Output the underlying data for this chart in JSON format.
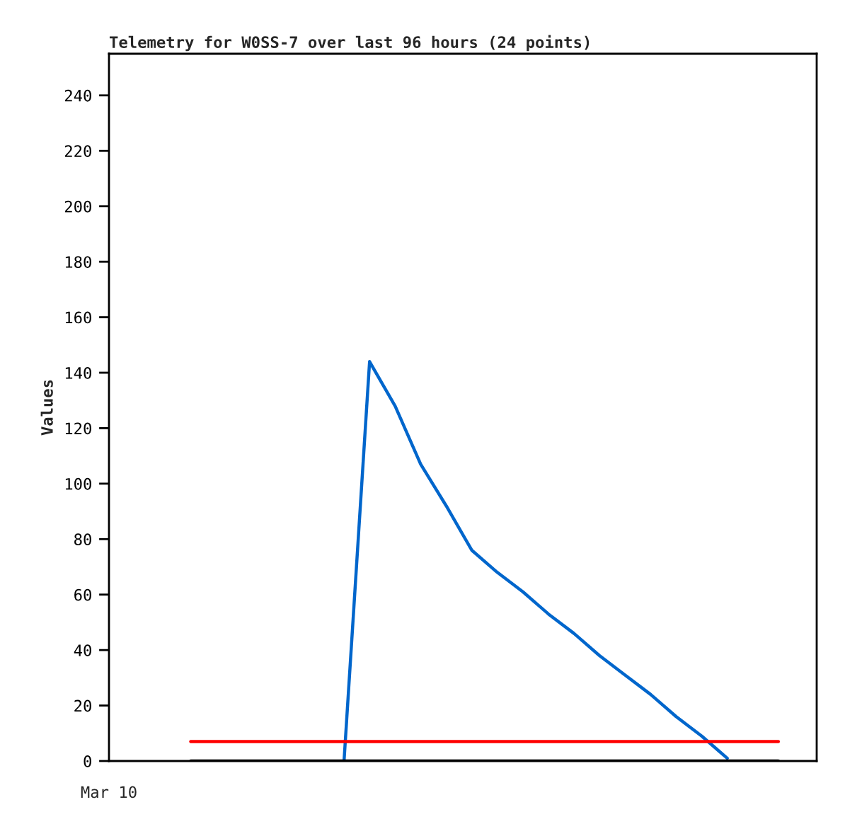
{
  "chart_data": {
    "type": "line",
    "title": "Telemetry for W0SS-7 over last 96 hours (24 points)",
    "ylabel": "Values",
    "annotations": [
      "Mar 10"
    ],
    "categories": [
      null,
      null,
      null,
      null,
      null,
      null,
      null,
      null,
      null,
      null,
      null,
      null,
      null,
      null,
      null,
      null,
      null,
      null,
      null,
      null,
      null,
      null,
      null,
      null
    ],
    "ylim": [
      0,
      255
    ],
    "yticks": [
      0,
      20,
      40,
      60,
      80,
      100,
      120,
      140,
      160,
      180,
      200,
      220,
      240
    ],
    "grid": false,
    "legend": false,
    "marker": "none",
    "line_style": "solid",
    "series": [
      {
        "color": "#0066cc",
        "values": [
          null,
          null,
          null,
          null,
          null,
          null,
          0,
          144,
          128,
          107,
          92,
          76,
          68,
          61,
          53,
          46,
          38,
          31,
          24,
          16,
          9,
          1,
          null,
          null
        ]
      },
      {
        "color": "#ff0000",
        "values": [
          7,
          7,
          7,
          7,
          7,
          7,
          7,
          7,
          7,
          7,
          7,
          7,
          7,
          7,
          7,
          7,
          7,
          7,
          7,
          7,
          7,
          7,
          7,
          7
        ]
      },
      {
        "color": "#000000",
        "values": [
          0,
          0,
          0,
          0,
          0,
          0,
          0,
          0,
          0,
          0,
          0,
          0,
          0,
          0,
          0,
          0,
          0,
          0,
          0,
          0,
          0,
          0,
          0,
          0
        ]
      }
    ]
  }
}
